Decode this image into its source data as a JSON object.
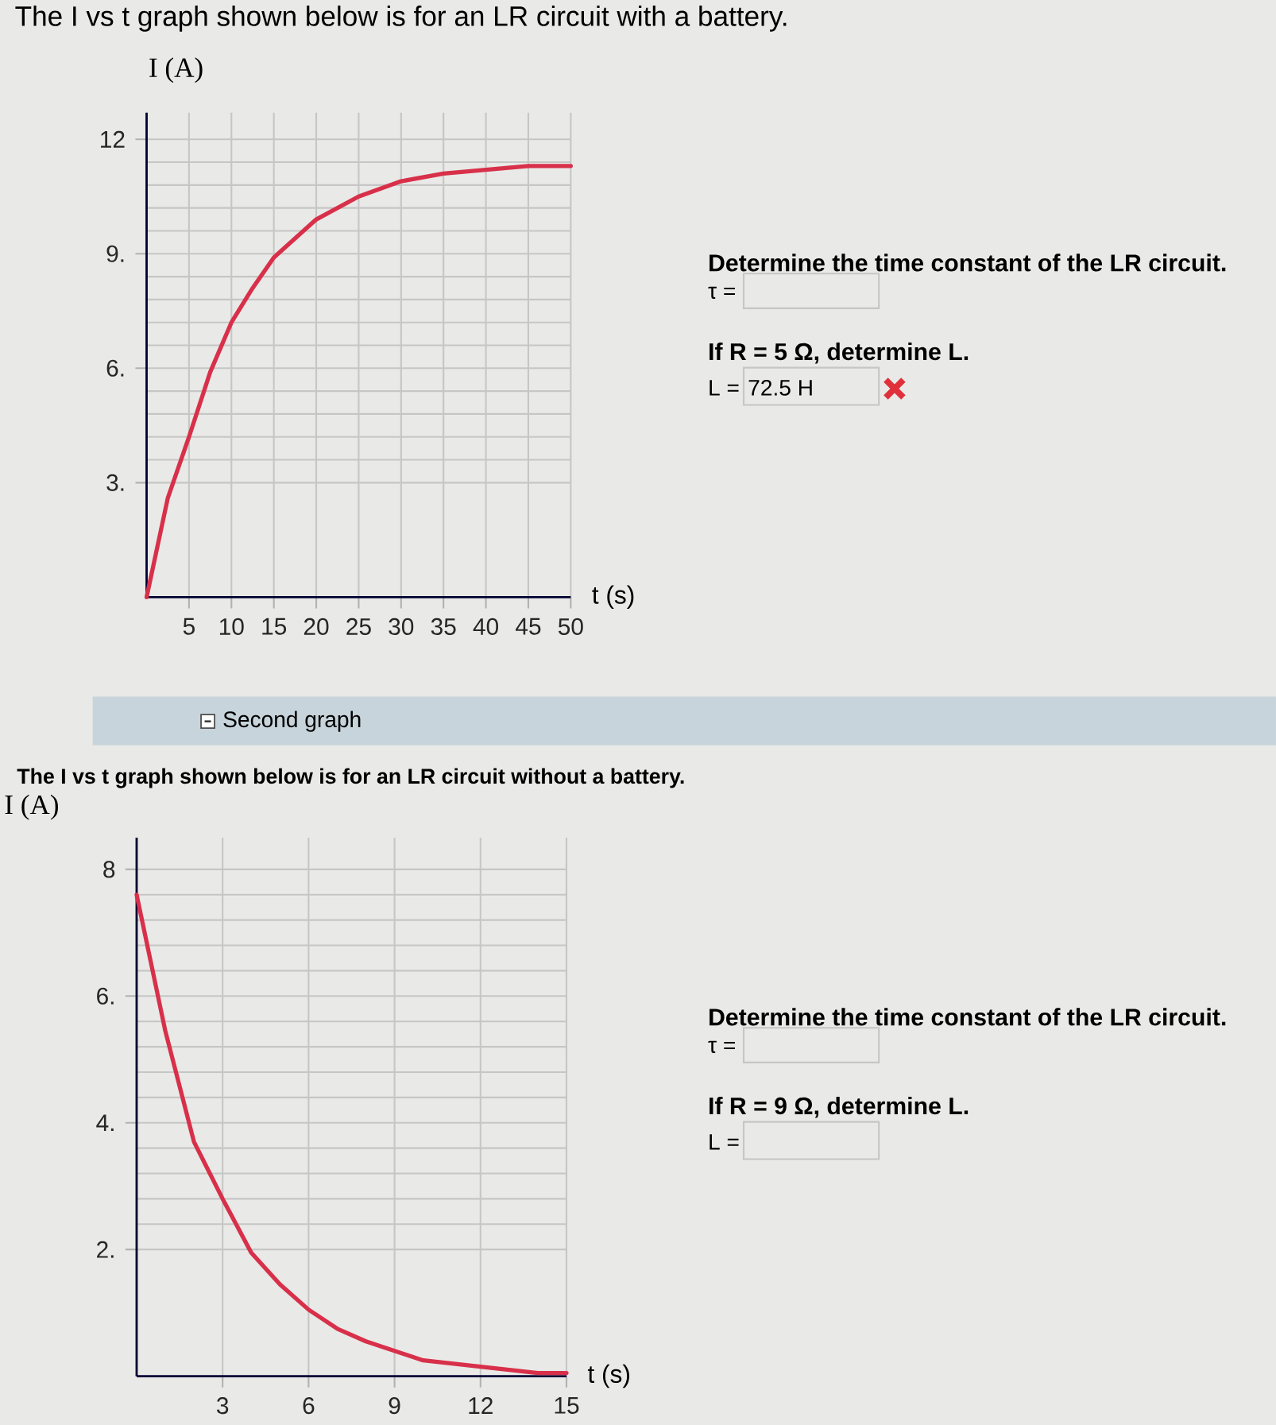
{
  "chart_data": [
    {
      "type": "line",
      "title": "The I vs t graph shown below is for an LR circuit with a battery.",
      "xlabel": "t (s)",
      "ylabel": "I (A)",
      "x": [
        0,
        2.5,
        5,
        7.5,
        10,
        12.5,
        15,
        20,
        25,
        30,
        35,
        40,
        45,
        50
      ],
      "values": [
        0,
        2.6,
        4.2,
        5.9,
        7.2,
        8.1,
        8.9,
        9.9,
        10.5,
        10.9,
        11.1,
        11.2,
        11.3,
        11.3
      ],
      "color": "#d8304a",
      "xlim": [
        0,
        50
      ],
      "ylim": [
        0,
        12.7
      ],
      "xticks": [
        5,
        10,
        15,
        20,
        25,
        30,
        35,
        40,
        45,
        50
      ],
      "yticks": [
        {
          "value": 3,
          "label": "3."
        },
        {
          "value": 6,
          "label": "6."
        },
        {
          "value": 9,
          "label": "9."
        },
        12
      ],
      "grid": true,
      "annotations": [
        "Determine the time constant of the LR circuit.",
        "τ =",
        "If R = 5 Ω, determine L.",
        "L =",
        "72.5 H"
      ]
    },
    {
      "type": "line",
      "title": "Second graph",
      "subtitle": "The I vs t graph shown below is for an LR circuit without a battery.",
      "xlabel": "t (s)",
      "ylabel": "I (A)",
      "x": [
        0,
        1,
        2,
        3,
        4,
        5,
        6,
        7,
        8,
        9,
        10,
        11,
        12,
        13,
        14,
        15
      ],
      "values": [
        7.6,
        5.45,
        3.7,
        2.8,
        1.95,
        1.45,
        1.05,
        0.75,
        0.55,
        0.4,
        0.25,
        0.2,
        0.15,
        0.1,
        0.05,
        0.05
      ],
      "color": "#d8304a",
      "xlim": [
        0,
        15
      ],
      "ylim": [
        0,
        8.5
      ],
      "xticks": [
        3,
        6,
        9,
        12,
        15
      ],
      "yticks": [
        {
          "value": 2,
          "label": "2."
        },
        {
          "value": 4,
          "label": "4."
        },
        {
          "value": 6,
          "label": "6."
        },
        8
      ],
      "grid": true,
      "annotations": [
        "Determine the time constant of the LR circuit.",
        "τ =",
        "If R = 9 Ω, determine L.",
        "L ="
      ]
    }
  ]
}
